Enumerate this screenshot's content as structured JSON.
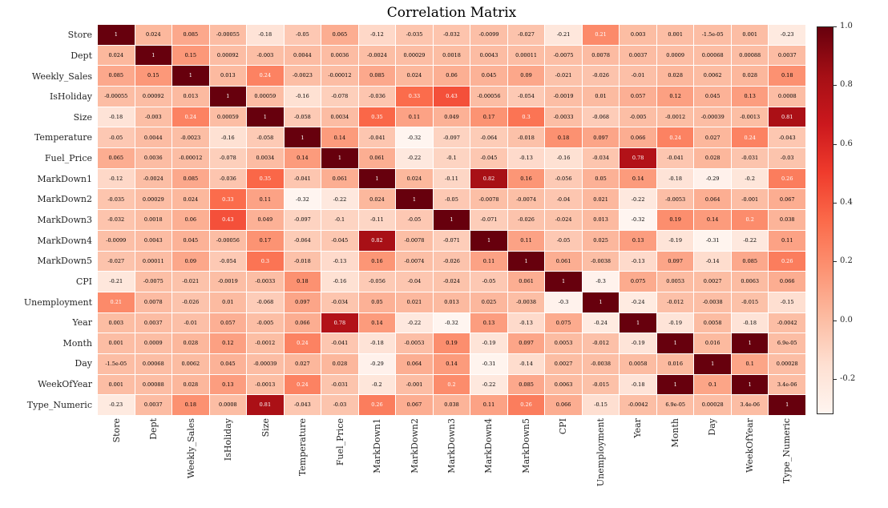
{
  "title": "Correlation Matrix",
  "chart_data": {
    "type": "heatmap",
    "title": "Correlation Matrix",
    "labels": [
      "Store",
      "Dept",
      "Weekly_Sales",
      "IsHoliday",
      "Size",
      "Temperature",
      "Fuel_Price",
      "MarkDown1",
      "MarkDown2",
      "MarkDown3",
      "MarkDown4",
      "MarkDown5",
      "CPI",
      "Unemployment",
      "Year",
      "Month",
      "Day",
      "WeekOfYear",
      "Type_Numeric"
    ],
    "matrix": [
      [
        "1",
        "0.024",
        "0.085",
        "-0.00055",
        "-0.18",
        "-0.05",
        "0.065",
        "-0.12",
        "-0.035",
        "-0.032",
        "-0.0099",
        "-0.027",
        "-0.21",
        "0.21",
        "0.003",
        "0.001",
        "-1.5e-05",
        "0.001",
        "-0.23"
      ],
      [
        "0.024",
        "1",
        "0.15",
        "0.00092",
        "-0.003",
        "0.0044",
        "0.0036",
        "-0.0024",
        "0.00029",
        "0.0018",
        "0.0043",
        "0.00011",
        "-0.0075",
        "0.0078",
        "0.0037",
        "0.0009",
        "0.00068",
        "0.00088",
        "0.0037"
      ],
      [
        "0.085",
        "0.15",
        "1",
        "0.013",
        "0.24",
        "-0.0023",
        "-0.00012",
        "0.085",
        "0.024",
        "0.06",
        "0.045",
        "0.09",
        "-0.021",
        "-0.026",
        "-0.01",
        "0.028",
        "0.0062",
        "0.028",
        "0.18"
      ],
      [
        "-0.00055",
        "0.00092",
        "0.013",
        "1",
        "0.00059",
        "-0.16",
        "-0.078",
        "-0.036",
        "0.33",
        "0.43",
        "-0.00056",
        "-0.054",
        "-0.0019",
        "0.01",
        "0.057",
        "0.12",
        "0.045",
        "0.13",
        "0.0008"
      ],
      [
        "-0.18",
        "-0.003",
        "0.24",
        "0.00059",
        "1",
        "-0.058",
        "0.0034",
        "0.35",
        "0.11",
        "0.049",
        "0.17",
        "0.3",
        "-0.0033",
        "-0.068",
        "-0.005",
        "-0.0012",
        "-0.00039",
        "-0.0013",
        "0.81"
      ],
      [
        "-0.05",
        "0.0044",
        "-0.0023",
        "-0.16",
        "-0.058",
        "1",
        "0.14",
        "-0.041",
        "-0.32",
        "-0.097",
        "-0.064",
        "-0.018",
        "0.18",
        "0.097",
        "0.066",
        "0.24",
        "0.027",
        "0.24",
        "-0.043"
      ],
      [
        "0.065",
        "0.0036",
        "-0.00012",
        "-0.078",
        "0.0034",
        "0.14",
        "1",
        "0.061",
        "-0.22",
        "-0.1",
        "-0.045",
        "-0.13",
        "-0.16",
        "-0.034",
        "0.78",
        "-0.041",
        "0.028",
        "-0.031",
        "-0.03"
      ],
      [
        "-0.12",
        "-0.0024",
        "0.085",
        "-0.036",
        "0.35",
        "-0.041",
        "0.061",
        "1",
        "0.024",
        "-0.11",
        "0.82",
        "0.16",
        "-0.056",
        "0.05",
        "0.14",
        "-0.18",
        "-0.29",
        "-0.2",
        "0.26"
      ],
      [
        "-0.035",
        "0.00029",
        "0.024",
        "0.33",
        "0.11",
        "-0.32",
        "-0.22",
        "0.024",
        "1",
        "-0.05",
        "-0.0078",
        "-0.0074",
        "-0.04",
        "0.021",
        "-0.22",
        "-0.0053",
        "0.064",
        "-0.001",
        "0.067"
      ],
      [
        "-0.032",
        "0.0018",
        "0.06",
        "0.43",
        "0.049",
        "-0.097",
        "-0.1",
        "-0.11",
        "-0.05",
        "1",
        "-0.071",
        "-0.026",
        "-0.024",
        "0.013",
        "-0.32",
        "0.19",
        "0.14",
        "0.2",
        "0.038"
      ],
      [
        "-0.0099",
        "0.0043",
        "0.045",
        "-0.00056",
        "0.17",
        "-0.064",
        "-0.045",
        "0.82",
        "-0.0078",
        "-0.071",
        "1",
        "0.11",
        "-0.05",
        "0.025",
        "0.13",
        "-0.19",
        "-0.31",
        "-0.22",
        "0.11"
      ],
      [
        "-0.027",
        "0.00011",
        "0.09",
        "-0.054",
        "0.3",
        "-0.018",
        "-0.13",
        "0.16",
        "-0.0074",
        "-0.026",
        "0.11",
        "1",
        "0.061",
        "-0.0038",
        "-0.13",
        "0.097",
        "-0.14",
        "0.085",
        "0.26"
      ],
      [
        "-0.21",
        "-0.0075",
        "-0.021",
        "-0.0019",
        "-0.0033",
        "0.18",
        "-0.16",
        "-0.056",
        "-0.04",
        "-0.024",
        "-0.05",
        "0.061",
        "1",
        "-0.3",
        "0.075",
        "0.0053",
        "0.0027",
        "0.0063",
        "0.066"
      ],
      [
        "0.21",
        "0.0078",
        "-0.026",
        "0.01",
        "-0.068",
        "0.097",
        "-0.034",
        "0.05",
        "0.021",
        "0.013",
        "0.025",
        "-0.0038",
        "-0.3",
        "1",
        "-0.24",
        "-0.012",
        "-0.0038",
        "-0.015",
        "-0.15"
      ],
      [
        "0.003",
        "0.0037",
        "-0.01",
        "0.057",
        "-0.005",
        "0.066",
        "0.78",
        "0.14",
        "-0.22",
        "-0.32",
        "0.13",
        "-0.13",
        "0.075",
        "-0.24",
        "1",
        "-0.19",
        "0.0058",
        "-0.18",
        "-0.0042"
      ],
      [
        "0.001",
        "0.0009",
        "0.028",
        "0.12",
        "-0.0012",
        "0.24",
        "-0.041",
        "-0.18",
        "-0.0053",
        "0.19",
        "-0.19",
        "0.097",
        "0.0053",
        "-0.012",
        "-0.19",
        "1",
        "0.016",
        "1",
        "6.9e-05"
      ],
      [
        "-1.5e-05",
        "0.00068",
        "0.0062",
        "0.045",
        "-0.00039",
        "0.027",
        "0.028",
        "-0.29",
        "0.064",
        "0.14",
        "-0.31",
        "-0.14",
        "0.0027",
        "-0.0038",
        "0.0058",
        "0.016",
        "1",
        "0.1",
        "0.00028"
      ],
      [
        "0.001",
        "0.00088",
        "0.028",
        "0.13",
        "-0.0013",
        "0.24",
        "-0.031",
        "-0.2",
        "-0.001",
        "0.2",
        "-0.22",
        "0.085",
        "0.0063",
        "-0.015",
        "-0.18",
        "1",
        "0.1",
        "1",
        "3.4e-06"
      ],
      [
        "-0.23",
        "0.0037",
        "0.18",
        "0.0008",
        "0.81",
        "-0.043",
        "-0.03",
        "0.26",
        "0.067",
        "0.038",
        "0.11",
        "0.26",
        "0.066",
        "-0.15",
        "-0.0042",
        "6.9e-05",
        "0.00028",
        "3.4e-06",
        "1"
      ]
    ],
    "vmin": -0.32,
    "vmax": 1.0,
    "colormap": {
      "name": "Reds",
      "stops": [
        "#fff5f0",
        "#fee0d2",
        "#fcbba1",
        "#fc9272",
        "#fb6a4a",
        "#ef3b2c",
        "#cb181d",
        "#a50f15",
        "#67000d"
      ]
    },
    "colorbar_ticks": [
      {
        "label": "1.0",
        "value": 1.0
      },
      {
        "label": "0.8",
        "value": 0.8
      },
      {
        "label": "0.6",
        "value": 0.6
      },
      {
        "label": "0.4",
        "value": 0.4
      },
      {
        "label": "0.2",
        "value": 0.2
      },
      {
        "label": "0.0",
        "value": 0.0
      },
      {
        "label": "-0.2",
        "value": -0.2
      }
    ],
    "legend_position": "right",
    "grid": false,
    "annotation_text_colors": {
      "light_cells": "#000000",
      "dark_cells": "#ffffff"
    }
  }
}
